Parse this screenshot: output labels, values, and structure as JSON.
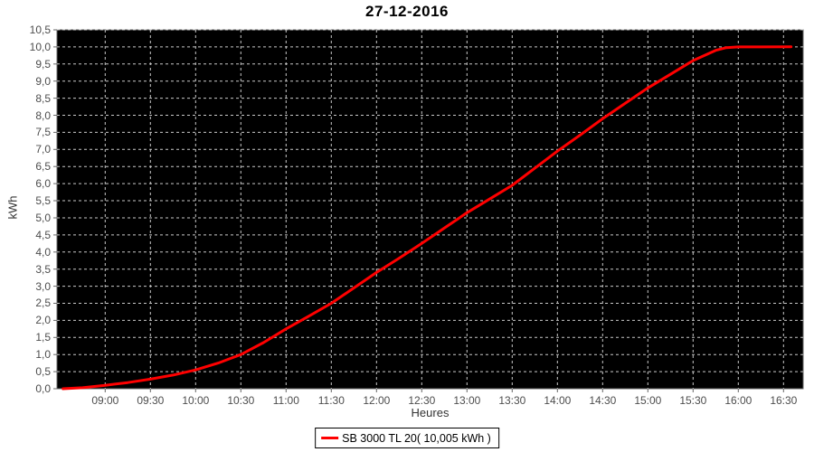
{
  "title": "27-12-2016",
  "axes": {
    "y_title": "kWh",
    "x_title": "Heures"
  },
  "legend": {
    "label": "SB 3000 TL 20( 10,005 kWh )"
  },
  "chart_data": {
    "type": "line",
    "title": "27-12-2016",
    "xlabel": "Heures",
    "ylabel": "kWh",
    "x_tick_labels": [
      "09:00",
      "09:30",
      "10:00",
      "10:30",
      "11:00",
      "11:30",
      "12:00",
      "12:30",
      "13:00",
      "13:30",
      "14:00",
      "14:30",
      "15:00",
      "15:30",
      "16:00",
      "16:30"
    ],
    "x_tick_minutes": [
      540,
      570,
      600,
      630,
      660,
      690,
      720,
      750,
      780,
      810,
      840,
      870,
      900,
      930,
      960,
      990
    ],
    "y_tick_labels": [
      "0,0",
      "0,5",
      "1,0",
      "1,5",
      "2,0",
      "2,5",
      "3,0",
      "3,5",
      "4,0",
      "4,5",
      "5,0",
      "5,5",
      "6,0",
      "6,5",
      "7,0",
      "7,5",
      "8,0",
      "8,5",
      "9,0",
      "9,5",
      "10,0",
      "10,5"
    ],
    "y_tick_values": [
      0,
      0.5,
      1,
      1.5,
      2,
      2.5,
      3,
      3.5,
      4,
      4.5,
      5,
      5.5,
      6,
      6.5,
      7,
      7.5,
      8,
      8.5,
      9,
      9.5,
      10,
      10.5
    ],
    "ylim": [
      0,
      10.5
    ],
    "x_range_minutes": [
      508,
      1003
    ],
    "grid": true,
    "legend_position": "bottom",
    "colors": {
      "plot_background": "#000000",
      "grid": "#c9c9c9",
      "axis": "#666666",
      "series": "#ff0000"
    },
    "series": [
      {
        "name": "SB 3000 TL 20( 10,005 kWh )",
        "color": "#ff0000",
        "total_kwh_label": "10,005",
        "points": [
          [
            "08:32",
            0.0
          ],
          [
            "08:45",
            0.03
          ],
          [
            "09:00",
            0.1
          ],
          [
            "09:15",
            0.18
          ],
          [
            "09:30",
            0.28
          ],
          [
            "09:45",
            0.4
          ],
          [
            "10:00",
            0.55
          ],
          [
            "10:15",
            0.75
          ],
          [
            "10:30",
            1.0
          ],
          [
            "10:45",
            1.35
          ],
          [
            "11:00",
            1.75
          ],
          [
            "11:15",
            2.12
          ],
          [
            "11:30",
            2.5
          ],
          [
            "11:45",
            2.95
          ],
          [
            "12:00",
            3.4
          ],
          [
            "12:15",
            3.82
          ],
          [
            "12:30",
            4.25
          ],
          [
            "12:45",
            4.7
          ],
          [
            "13:00",
            5.15
          ],
          [
            "13:15",
            5.55
          ],
          [
            "13:30",
            5.95
          ],
          [
            "13:45",
            6.45
          ],
          [
            "14:00",
            6.95
          ],
          [
            "14:15",
            7.42
          ],
          [
            "14:30",
            7.9
          ],
          [
            "14:45",
            8.35
          ],
          [
            "15:00",
            8.8
          ],
          [
            "15:15",
            9.2
          ],
          [
            "15:30",
            9.6
          ],
          [
            "15:45",
            9.9
          ],
          [
            "15:52",
            9.98
          ],
          [
            "16:00",
            10.0
          ],
          [
            "16:15",
            10.0
          ],
          [
            "16:35",
            10.005
          ]
        ]
      }
    ]
  }
}
